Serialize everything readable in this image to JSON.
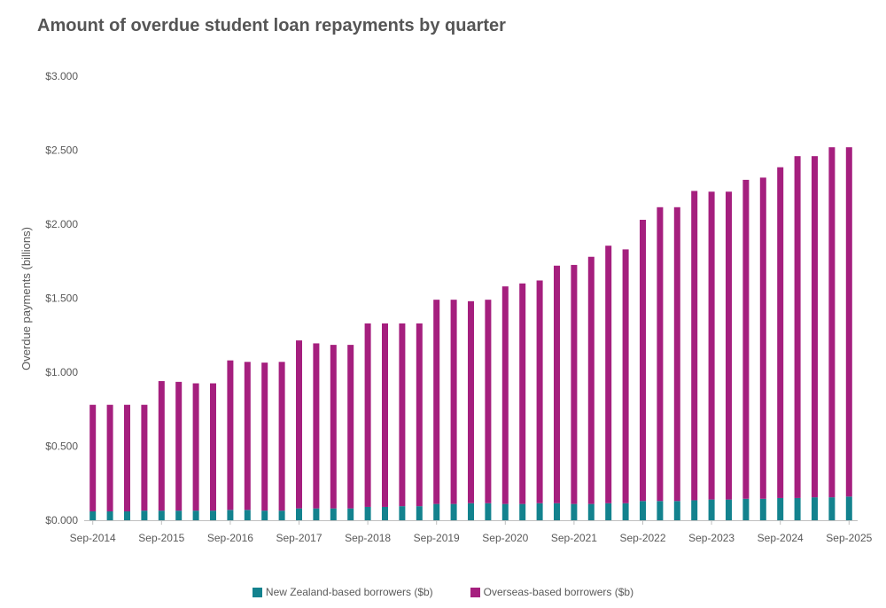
{
  "chart_data": {
    "type": "bar",
    "stacked": true,
    "title": "Amount of overdue student loan repayments by quarter",
    "xlabel": "",
    "ylabel": "Overdue payments (billions)",
    "ylim": [
      0,
      3
    ],
    "yticks": [
      "$0.000",
      "$0.500",
      "$1.000",
      "$1.500",
      "$2.000",
      "$2.500",
      "$3.000"
    ],
    "xtick_labels": [
      "Sep-2014",
      "Sep-2015",
      "Sep-2016",
      "Sep-2017",
      "Sep-2018",
      "Sep-2019",
      "Sep-2020",
      "Sep-2021",
      "Sep-2022",
      "Sep-2023",
      "Sep-2024",
      "Sep-2025"
    ],
    "categories": [
      "Sep-2014",
      "Dec-2014",
      "Mar-2015",
      "Jun-2015",
      "Sep-2015",
      "Dec-2015",
      "Mar-2016",
      "Jun-2016",
      "Sep-2016",
      "Dec-2016",
      "Mar-2017",
      "Jun-2017",
      "Sep-2017",
      "Dec-2017",
      "Mar-2018",
      "Jun-2018",
      "Sep-2018",
      "Dec-2018",
      "Mar-2019",
      "Jun-2019",
      "Sep-2019",
      "Dec-2019",
      "Mar-2020",
      "Jun-2020",
      "Sep-2020",
      "Dec-2020",
      "Mar-2021",
      "Jun-2021",
      "Sep-2021",
      "Dec-2021",
      "Mar-2022",
      "Jun-2022",
      "Sep-2022",
      "Dec-2022",
      "Mar-2023",
      "Jun-2023",
      "Sep-2023",
      "Dec-2023",
      "Mar-2024",
      "Jun-2024",
      "Sep-2024",
      "Dec-2024",
      "Mar-2025",
      "Jun-2025",
      "Sep-2025"
    ],
    "series": [
      {
        "name": "New Zealand-based borrowers ($b)",
        "color": "#13828e",
        "values": [
          0.06,
          0.06,
          0.06,
          0.065,
          0.065,
          0.065,
          0.065,
          0.065,
          0.07,
          0.07,
          0.065,
          0.065,
          0.08,
          0.08,
          0.08,
          0.08,
          0.09,
          0.09,
          0.095,
          0.095,
          0.11,
          0.11,
          0.115,
          0.115,
          0.11,
          0.11,
          0.115,
          0.115,
          0.11,
          0.11,
          0.115,
          0.115,
          0.13,
          0.13,
          0.13,
          0.135,
          0.14,
          0.14,
          0.145,
          0.145,
          0.15,
          0.15,
          0.155,
          0.155,
          0.16
        ]
      },
      {
        "name": "Overseas-based borrowers ($b)",
        "color": "#a51f7e",
        "values": [
          0.72,
          0.72,
          0.72,
          0.715,
          0.875,
          0.87,
          0.86,
          0.86,
          1.01,
          1.0,
          1.0,
          1.005,
          1.135,
          1.115,
          1.105,
          1.105,
          1.24,
          1.24,
          1.235,
          1.235,
          1.38,
          1.38,
          1.365,
          1.375,
          1.47,
          1.49,
          1.505,
          1.605,
          1.615,
          1.67,
          1.74,
          1.715,
          1.9,
          1.985,
          1.985,
          2.09,
          2.08,
          2.08,
          2.155,
          2.17,
          2.235,
          2.31,
          2.305,
          2.365,
          2.36
        ]
      }
    ],
    "legend_position": "bottom-center",
    "grid": false
  }
}
